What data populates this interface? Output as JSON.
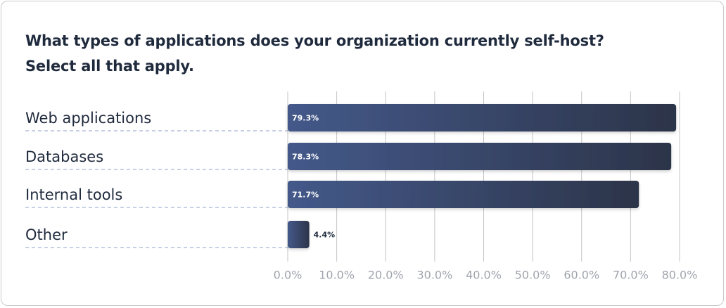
{
  "chart_data": {
    "type": "hbar",
    "title": "What types of applications does your organization currently self-host? Select all that apply.",
    "categories": [
      "Web applications",
      "Databases",
      "Internal tools",
      "Other"
    ],
    "values": [
      79.3,
      78.3,
      71.7,
      4.4
    ],
    "value_labels": [
      "79.3%",
      "78.3%",
      "71.7%",
      "4.4%"
    ],
    "color": "#3f5283",
    "xlim": [
      0,
      80
    ],
    "xticks": [
      {
        "value": 0,
        "label": "0.0%"
      },
      {
        "value": 10,
        "label": "10.0%"
      },
      {
        "value": 20,
        "label": "20.0%"
      },
      {
        "value": 30,
        "label": "30.0%"
      },
      {
        "value": 40,
        "label": "40.0%"
      },
      {
        "value": 50,
        "label": "50.0%"
      },
      {
        "value": 60,
        "label": "60.0%"
      },
      {
        "value": 70,
        "label": "70.0%"
      },
      {
        "value": 80,
        "label": "80.0%"
      }
    ],
    "grid": true
  }
}
